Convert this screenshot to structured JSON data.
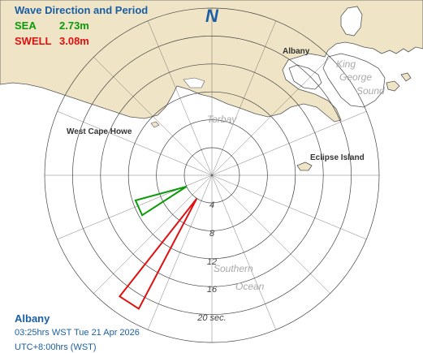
{
  "header": {
    "title": "Wave Direction and Period",
    "sea_label": "SEA",
    "sea_value": "2.73m",
    "swell_label": "SWELL",
    "swell_value": "3.08m"
  },
  "compass": {
    "north_label": "N"
  },
  "map_labels": {
    "albany": "Albany",
    "west_cape_howe": "West Cape Howe",
    "eclipse_island": "Eclipse Island",
    "torbay": "Torbay",
    "king_george_sound_line1": "King",
    "king_george_sound_line2": "George",
    "king_george_sound_line3": "Sound",
    "southern_ocean_line1": "Southern",
    "southern_ocean_line2": "Ocean"
  },
  "period_rings": {
    "labels": [
      "4",
      "8",
      "12",
      "16",
      "20 sec."
    ],
    "values_sec": [
      4,
      8,
      12,
      16,
      20
    ]
  },
  "waves": {
    "sea": {
      "color": "#0a9a0a",
      "direction_from_deg": 246,
      "period_sec": 7.5,
      "height_m": 2.73
    },
    "swell": {
      "color": "#e01010",
      "direction_from_deg": 213,
      "period_sec": 17.8,
      "height_m": 3.08
    }
  },
  "colors": {
    "land": "#efe4c5",
    "coast": "#555555",
    "ring": "#444444",
    "header_blue": "#1a5fa6"
  },
  "footer": {
    "location": "Albany",
    "time": "03:25hrs WST  Tue 21 Apr 2026",
    "utc": "UTC+8:00hrs (WST)"
  }
}
